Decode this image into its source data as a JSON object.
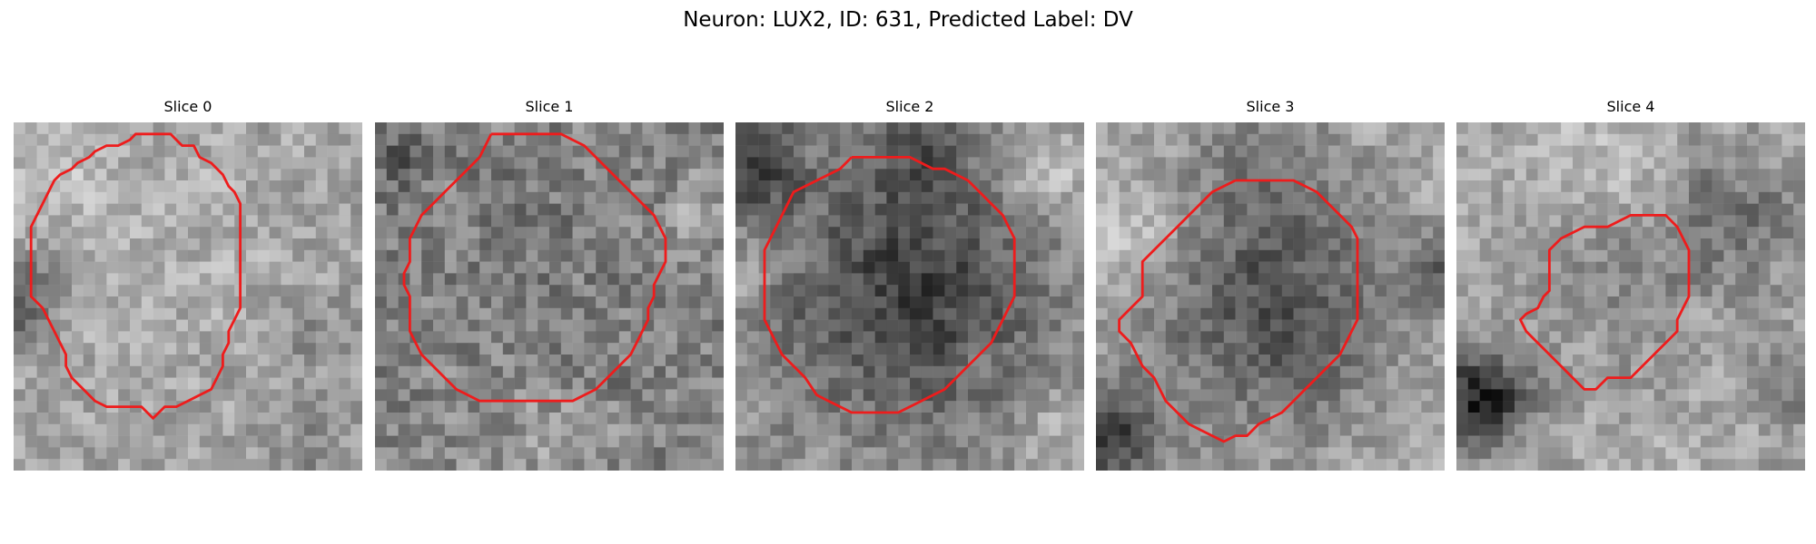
{
  "figure": {
    "title": "Neuron: LUX2, ID: 631, Predicted Label: DV",
    "contour_color": "#ee1c1c",
    "panels": [
      {
        "title": "Slice 0",
        "contour": [
          [
            11.5,
            1
          ],
          [
            12.5,
            1
          ],
          [
            13.5,
            1
          ],
          [
            14,
            1.5
          ],
          [
            14.5,
            2
          ],
          [
            15.5,
            2
          ],
          [
            16,
            3
          ],
          [
            17,
            3.5
          ],
          [
            18,
            4.5
          ],
          [
            18.5,
            5.5
          ],
          [
            19,
            6
          ],
          [
            19.5,
            7
          ],
          [
            19.5,
            8
          ],
          [
            19.5,
            9
          ],
          [
            19.5,
            10
          ],
          [
            19.5,
            11
          ],
          [
            19.5,
            12
          ],
          [
            19.5,
            13
          ],
          [
            19.5,
            14
          ],
          [
            19.5,
            15
          ],
          [
            19.5,
            16
          ],
          [
            19,
            17
          ],
          [
            18.5,
            18
          ],
          [
            18.5,
            19
          ],
          [
            18,
            20
          ],
          [
            18,
            21
          ],
          [
            17.5,
            22
          ],
          [
            17,
            23
          ],
          [
            16,
            23.5
          ],
          [
            15,
            24
          ],
          [
            14,
            24.5
          ],
          [
            13,
            24.5
          ],
          [
            12.5,
            25
          ],
          [
            12,
            25.5
          ],
          [
            11.5,
            25
          ],
          [
            11,
            24.5
          ],
          [
            10,
            24.5
          ],
          [
            9,
            24.5
          ],
          [
            8,
            24.5
          ],
          [
            7,
            24
          ],
          [
            6,
            23
          ],
          [
            5,
            22
          ],
          [
            4.5,
            21
          ],
          [
            4.5,
            20
          ],
          [
            4,
            19
          ],
          [
            3.5,
            18
          ],
          [
            3,
            17
          ],
          [
            2.5,
            16
          ],
          [
            1.5,
            15
          ],
          [
            1.5,
            14
          ],
          [
            1.5,
            13
          ],
          [
            1.5,
            12
          ],
          [
            1.5,
            11
          ],
          [
            1.5,
            10
          ],
          [
            1.5,
            9
          ],
          [
            2,
            8
          ],
          [
            2.5,
            7
          ],
          [
            3,
            6
          ],
          [
            3.5,
            5
          ],
          [
            4,
            4.5
          ],
          [
            5,
            4
          ],
          [
            5.5,
            3.5
          ],
          [
            6.5,
            3
          ],
          [
            7,
            2.5
          ],
          [
            8,
            2
          ],
          [
            9,
            2
          ],
          [
            10,
            1.5
          ],
          [
            10.5,
            1
          ],
          [
            11.5,
            1
          ]
        ]
      },
      {
        "title": "Slice 1",
        "contour": [
          [
            10,
            1
          ],
          [
            11,
            1
          ],
          [
            12,
            1
          ],
          [
            13,
            1
          ],
          [
            14,
            1
          ],
          [
            15,
            1
          ],
          [
            16,
            1
          ],
          [
            17,
            1.5
          ],
          [
            18,
            2
          ],
          [
            19,
            3
          ],
          [
            20,
            4
          ],
          [
            21,
            5
          ],
          [
            22,
            6
          ],
          [
            23,
            7
          ],
          [
            24,
            8
          ],
          [
            24.5,
            9
          ],
          [
            25,
            10
          ],
          [
            25,
            11
          ],
          [
            25,
            12
          ],
          [
            24.5,
            13
          ],
          [
            24,
            14
          ],
          [
            24,
            15
          ],
          [
            23.5,
            16
          ],
          [
            23.5,
            17
          ],
          [
            23,
            18
          ],
          [
            22.5,
            19
          ],
          [
            22,
            20
          ],
          [
            21,
            21
          ],
          [
            20,
            22
          ],
          [
            19,
            23
          ],
          [
            18,
            23.5
          ],
          [
            17,
            24
          ],
          [
            16,
            24
          ],
          [
            15,
            24
          ],
          [
            14,
            24
          ],
          [
            13,
            24
          ],
          [
            12,
            24
          ],
          [
            11,
            24
          ],
          [
            10,
            24
          ],
          [
            9,
            24
          ],
          [
            8,
            23.5
          ],
          [
            7,
            23
          ],
          [
            6,
            22
          ],
          [
            5,
            21
          ],
          [
            4,
            20
          ],
          [
            3.5,
            19
          ],
          [
            3,
            18
          ],
          [
            3,
            17
          ],
          [
            3,
            16
          ],
          [
            3,
            15
          ],
          [
            2.5,
            14
          ],
          [
            2.5,
            13
          ],
          [
            3,
            12
          ],
          [
            3,
            11
          ],
          [
            3,
            10
          ],
          [
            3.5,
            9
          ],
          [
            4,
            8
          ],
          [
            5,
            7
          ],
          [
            6,
            6
          ],
          [
            7,
            5
          ],
          [
            8,
            4
          ],
          [
            9,
            3
          ],
          [
            9.5,
            2
          ],
          [
            10,
            1
          ]
        ]
      },
      {
        "title": "Slice 2",
        "contour": [
          [
            10,
            3
          ],
          [
            11,
            3
          ],
          [
            12,
            3
          ],
          [
            13,
            3
          ],
          [
            14,
            3
          ],
          [
            15,
            3
          ],
          [
            16,
            3.5
          ],
          [
            17,
            4
          ],
          [
            18,
            4
          ],
          [
            19,
            4.5
          ],
          [
            20,
            5
          ],
          [
            21,
            6
          ],
          [
            22,
            7
          ],
          [
            23,
            8
          ],
          [
            23.5,
            9
          ],
          [
            24,
            10
          ],
          [
            24,
            11
          ],
          [
            24,
            12
          ],
          [
            24,
            13
          ],
          [
            24,
            14
          ],
          [
            24,
            15
          ],
          [
            23.5,
            16
          ],
          [
            23,
            17
          ],
          [
            22.5,
            18
          ],
          [
            22,
            19
          ],
          [
            21,
            20
          ],
          [
            20,
            21
          ],
          [
            19,
            22
          ],
          [
            18,
            23
          ],
          [
            17,
            23.5
          ],
          [
            16,
            24
          ],
          [
            15,
            24.5
          ],
          [
            14,
            25
          ],
          [
            13,
            25
          ],
          [
            12,
            25
          ],
          [
            11,
            25
          ],
          [
            10,
            25
          ],
          [
            9,
            24.5
          ],
          [
            8,
            24
          ],
          [
            7,
            23.5
          ],
          [
            6,
            22
          ],
          [
            5,
            21
          ],
          [
            4,
            20
          ],
          [
            3.5,
            19
          ],
          [
            3,
            18
          ],
          [
            2.5,
            17
          ],
          [
            2.5,
            16
          ],
          [
            2.5,
            15
          ],
          [
            2.5,
            14
          ],
          [
            2.5,
            13
          ],
          [
            2.5,
            12
          ],
          [
            2.5,
            11
          ],
          [
            3,
            10
          ],
          [
            3.5,
            9
          ],
          [
            4,
            8
          ],
          [
            4.5,
            7
          ],
          [
            5,
            6
          ],
          [
            6,
            5.5
          ],
          [
            7,
            5
          ],
          [
            8,
            4.5
          ],
          [
            9,
            4
          ],
          [
            10,
            3
          ]
        ]
      },
      {
        "title": "Slice 3",
        "contour": [
          [
            12,
            5
          ],
          [
            13,
            5
          ],
          [
            14,
            5
          ],
          [
            15,
            5
          ],
          [
            16,
            5
          ],
          [
            17,
            5
          ],
          [
            18,
            5.5
          ],
          [
            19,
            6
          ],
          [
            20,
            7
          ],
          [
            21,
            8
          ],
          [
            22,
            9
          ],
          [
            22.5,
            10
          ],
          [
            22.5,
            11
          ],
          [
            22.5,
            12
          ],
          [
            22.5,
            13
          ],
          [
            22.5,
            14
          ],
          [
            22.5,
            15
          ],
          [
            22.5,
            16
          ],
          [
            22.5,
            17
          ],
          [
            22,
            18
          ],
          [
            21.5,
            19
          ],
          [
            21,
            20
          ],
          [
            20,
            21
          ],
          [
            19,
            22
          ],
          [
            18,
            23
          ],
          [
            17,
            24
          ],
          [
            16,
            25
          ],
          [
            15,
            25.5
          ],
          [
            14,
            26
          ],
          [
            13,
            27
          ],
          [
            12,
            27
          ],
          [
            11,
            27.5
          ],
          [
            10,
            27
          ],
          [
            9,
            26.5
          ],
          [
            8,
            26
          ],
          [
            7,
            25
          ],
          [
            6,
            24
          ],
          [
            5.5,
            23
          ],
          [
            5,
            22
          ],
          [
            4,
            21
          ],
          [
            3,
            19
          ],
          [
            2,
            18
          ],
          [
            2,
            17
          ],
          [
            3,
            16
          ],
          [
            4,
            15
          ],
          [
            4,
            14
          ],
          [
            4,
            13
          ],
          [
            4,
            12
          ],
          [
            5,
            11
          ],
          [
            6,
            10
          ],
          [
            7,
            9
          ],
          [
            8,
            8
          ],
          [
            9,
            7
          ],
          [
            10,
            6
          ],
          [
            11,
            5.5
          ],
          [
            12,
            5
          ]
        ]
      },
      {
        "title": "Slice 4",
        "contour": [
          [
            16,
            8
          ],
          [
            17,
            8
          ],
          [
            18,
            8
          ],
          [
            19,
            9
          ],
          [
            19.5,
            10
          ],
          [
            20,
            11
          ],
          [
            20,
            12
          ],
          [
            20,
            13
          ],
          [
            20,
            14
          ],
          [
            20,
            15
          ],
          [
            19.5,
            16
          ],
          [
            19,
            17
          ],
          [
            19,
            18
          ],
          [
            18,
            19
          ],
          [
            17,
            20
          ],
          [
            16,
            21
          ],
          [
            15,
            22
          ],
          [
            14,
            22
          ],
          [
            13,
            22
          ],
          [
            12,
            23
          ],
          [
            11,
            23
          ],
          [
            10,
            22
          ],
          [
            9,
            21
          ],
          [
            8,
            20
          ],
          [
            7,
            19
          ],
          [
            6,
            18
          ],
          [
            5.5,
            17
          ],
          [
            6,
            16.5
          ],
          [
            7,
            16
          ],
          [
            7.5,
            15
          ],
          [
            8,
            14.5
          ],
          [
            8,
            14
          ],
          [
            8,
            13
          ],
          [
            8,
            12
          ],
          [
            8,
            11
          ],
          [
            9,
            10
          ],
          [
            10,
            9.5
          ],
          [
            11,
            9
          ],
          [
            12,
            9
          ],
          [
            13,
            9
          ],
          [
            14,
            8.5
          ],
          [
            15,
            8
          ],
          [
            16,
            8
          ]
        ]
      }
    ]
  }
}
